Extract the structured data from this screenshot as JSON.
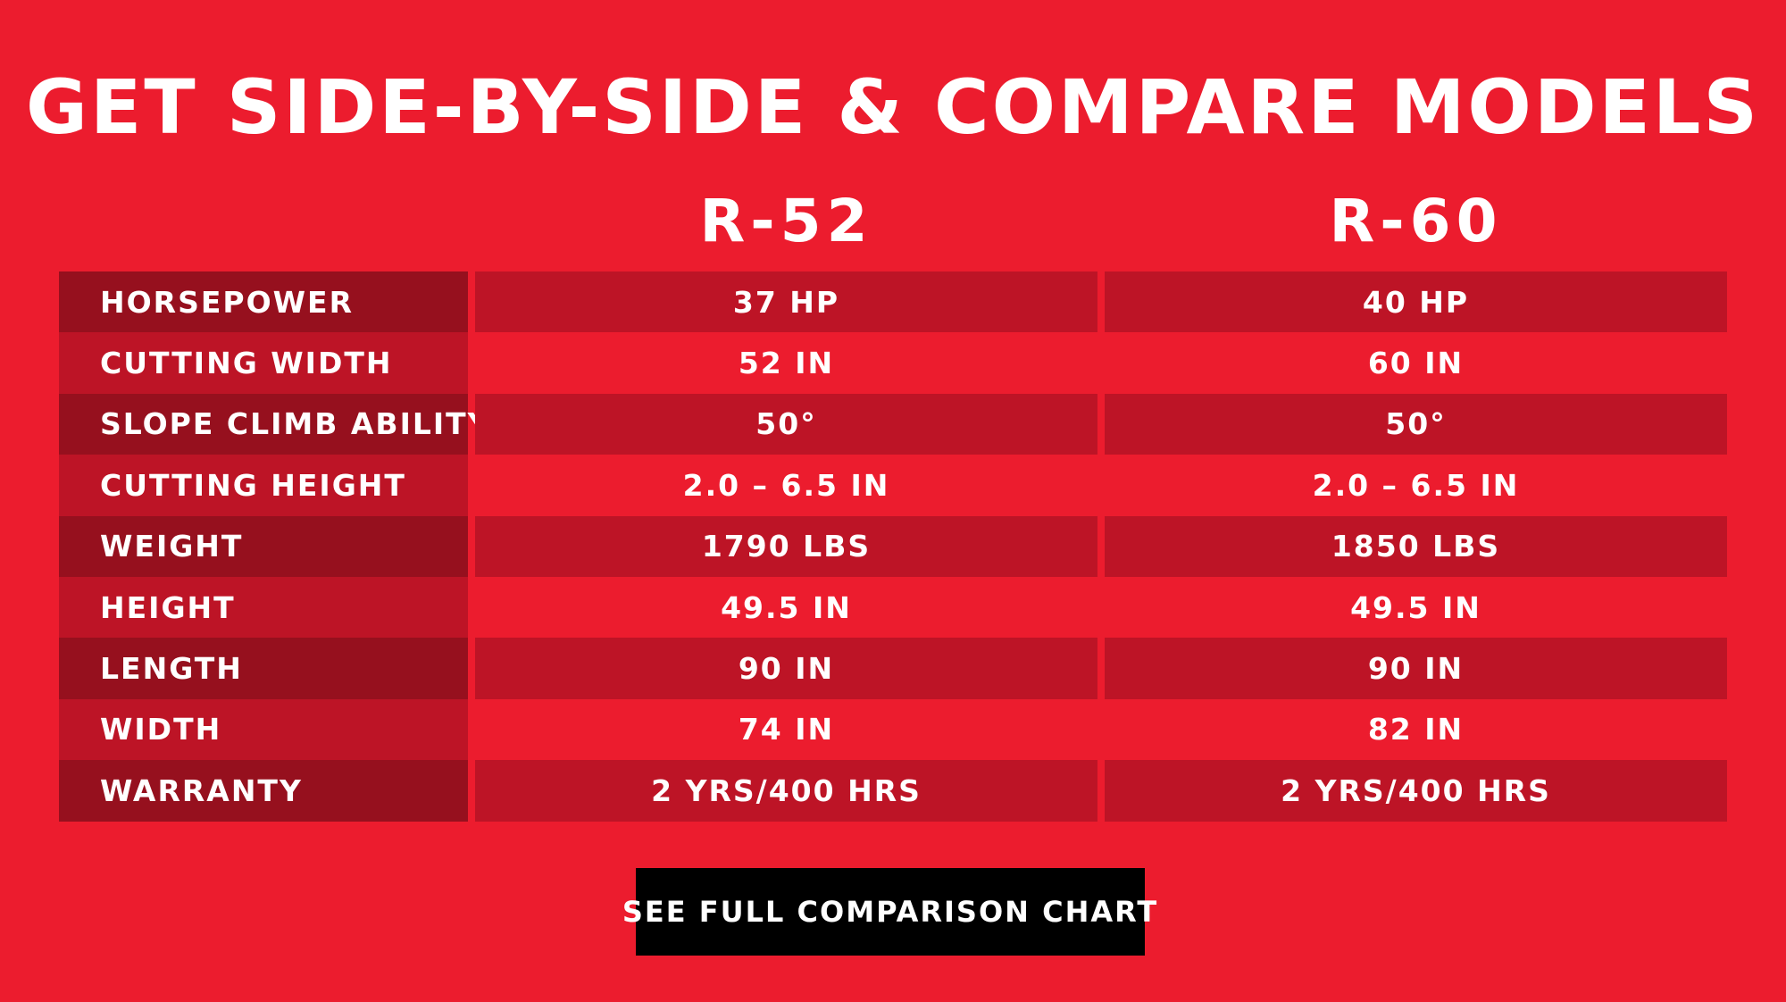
{
  "title": "GET SIDE-BY-SIDE & COMPARE MODELS",
  "models": [
    "R-52",
    "R-60"
  ],
  "rows": [
    {
      "label": "HORSEPOWER",
      "values": [
        "37 HP",
        "40 HP"
      ]
    },
    {
      "label": "CUTTING WIDTH",
      "values": [
        "52 IN",
        "60 IN"
      ]
    },
    {
      "label": "SLOPE CLIMB ABILITY",
      "values": [
        "50°",
        "50°"
      ]
    },
    {
      "label": "CUTTING HEIGHT",
      "values": [
        "2.0 – 6.5 IN",
        "2.0 – 6.5 IN"
      ]
    },
    {
      "label": "WEIGHT",
      "values": [
        "1790 LBS",
        "1850 LBS"
      ]
    },
    {
      "label": "HEIGHT",
      "values": [
        "49.5 IN",
        "49.5 IN"
      ]
    },
    {
      "label": "LENGTH",
      "values": [
        "90 IN",
        "90 IN"
      ]
    },
    {
      "label": "WIDTH",
      "values": [
        "74 IN",
        "82 IN"
      ]
    },
    {
      "label": "WARRANTY",
      "values": [
        "2 YRS/400 HRS",
        "2 YRS/400 HRS"
      ]
    }
  ],
  "cta": {
    "label": "SEE FULL COMPARISON CHART"
  },
  "colors": {
    "background": "#ec1c2e",
    "label_dark": "#96101e",
    "row_dark": "#bd1426",
    "button": "#000000",
    "text": "#ffffff"
  }
}
